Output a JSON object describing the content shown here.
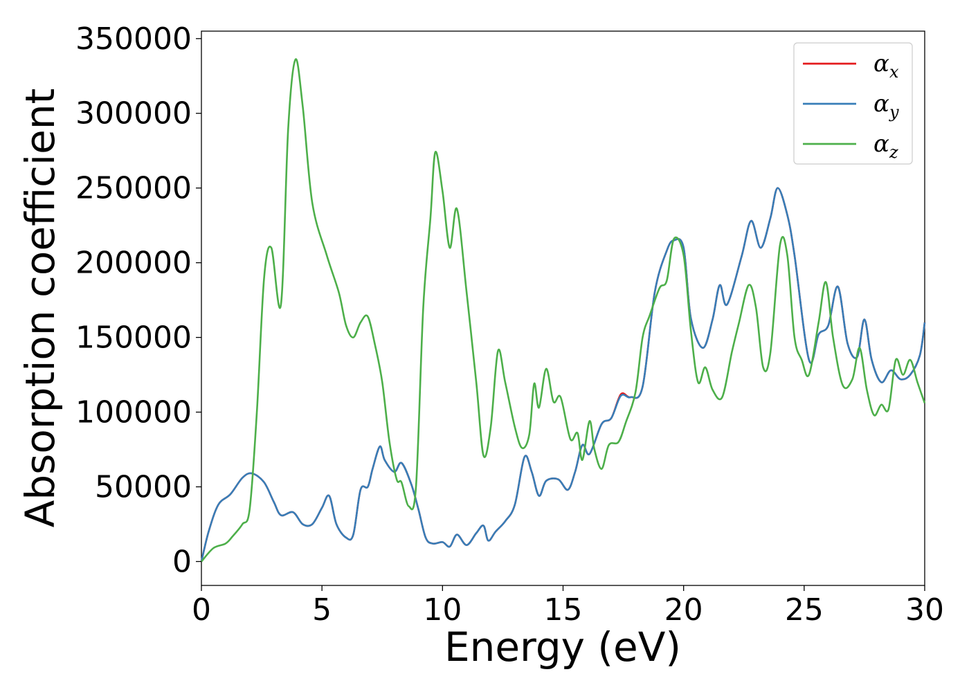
{
  "chart_data": {
    "type": "line",
    "xlabel": "Energy (eV)",
    "ylabel": "Absorption coefficient",
    "xlim": [
      0,
      30
    ],
    "ylim": [
      -16000,
      355000
    ],
    "xticks": [
      0,
      5,
      10,
      15,
      20,
      25,
      30
    ],
    "yticks": [
      0,
      50000,
      100000,
      150000,
      200000,
      250000,
      300000,
      350000
    ],
    "grid": false,
    "legend_position": "top-right",
    "series": [
      {
        "name": "α",
        "sub": "x",
        "color": "#e41a1c",
        "points": [
          [
            0,
            0
          ],
          [
            0.3,
            20000
          ],
          [
            0.7,
            38000
          ],
          [
            1.2,
            45000
          ],
          [
            1.7,
            56000
          ],
          [
            2.1,
            59000
          ],
          [
            2.6,
            53000
          ],
          [
            3.0,
            40000
          ],
          [
            3.3,
            31000
          ],
          [
            3.8,
            33000
          ],
          [
            4.2,
            25000
          ],
          [
            4.6,
            25000
          ],
          [
            5.0,
            36000
          ],
          [
            5.3,
            44000
          ],
          [
            5.6,
            25000
          ],
          [
            6.0,
            16000
          ],
          [
            6.3,
            18000
          ],
          [
            6.6,
            48000
          ],
          [
            6.9,
            50000
          ],
          [
            7.1,
            62000
          ],
          [
            7.4,
            77000
          ],
          [
            7.6,
            68000
          ],
          [
            8.0,
            60000
          ],
          [
            8.3,
            66000
          ],
          [
            8.7,
            52000
          ],
          [
            9.0,
            35000
          ],
          [
            9.3,
            16000
          ],
          [
            9.6,
            12000
          ],
          [
            10.0,
            13000
          ],
          [
            10.3,
            10000
          ],
          [
            10.6,
            18000
          ],
          [
            11.0,
            11000
          ],
          [
            11.4,
            19000
          ],
          [
            11.7,
            24000
          ],
          [
            11.9,
            14000
          ],
          [
            12.2,
            20000
          ],
          [
            12.6,
            27000
          ],
          [
            13.0,
            38000
          ],
          [
            13.4,
            70000
          ],
          [
            13.7,
            60000
          ],
          [
            14.0,
            44000
          ],
          [
            14.3,
            54000
          ],
          [
            14.8,
            55000
          ],
          [
            15.2,
            48000
          ],
          [
            15.5,
            60000
          ],
          [
            15.8,
            78000
          ],
          [
            16.1,
            72000
          ],
          [
            16.6,
            92000
          ],
          [
            17.0,
            96000
          ],
          [
            17.4,
            112000
          ],
          [
            17.8,
            110000
          ],
          [
            18.3,
            117000
          ],
          [
            18.8,
            180000
          ],
          [
            19.3,
            208000
          ],
          [
            19.6,
            215000
          ],
          [
            20.0,
            210000
          ],
          [
            20.3,
            163000
          ],
          [
            20.8,
            143000
          ],
          [
            21.2,
            162000
          ],
          [
            21.5,
            185000
          ],
          [
            21.8,
            172000
          ],
          [
            22.4,
            204000
          ],
          [
            22.8,
            228000
          ],
          [
            23.2,
            210000
          ],
          [
            23.6,
            230000
          ],
          [
            23.9,
            250000
          ],
          [
            24.3,
            232000
          ],
          [
            24.6,
            205000
          ],
          [
            25.2,
            135000
          ],
          [
            25.6,
            152000
          ],
          [
            26.0,
            158000
          ],
          [
            26.4,
            184000
          ],
          [
            26.8,
            146000
          ],
          [
            27.2,
            137000
          ],
          [
            27.5,
            162000
          ],
          [
            27.8,
            135000
          ],
          [
            28.2,
            120000
          ],
          [
            28.6,
            128000
          ],
          [
            29.0,
            122000
          ],
          [
            29.4,
            125000
          ],
          [
            29.8,
            138000
          ],
          [
            30.0,
            160000
          ]
        ]
      },
      {
        "name": "α",
        "sub": "y",
        "color": "#377eb8",
        "points": [
          [
            0,
            0
          ],
          [
            0.3,
            20000
          ],
          [
            0.7,
            38000
          ],
          [
            1.2,
            45000
          ],
          [
            1.7,
            56000
          ],
          [
            2.1,
            59000
          ],
          [
            2.6,
            53000
          ],
          [
            3.0,
            40000
          ],
          [
            3.3,
            31000
          ],
          [
            3.8,
            33000
          ],
          [
            4.2,
            25000
          ],
          [
            4.6,
            25000
          ],
          [
            5.0,
            36000
          ],
          [
            5.3,
            44000
          ],
          [
            5.6,
            25000
          ],
          [
            6.0,
            16000
          ],
          [
            6.3,
            18000
          ],
          [
            6.6,
            48000
          ],
          [
            6.9,
            50000
          ],
          [
            7.1,
            62000
          ],
          [
            7.4,
            77000
          ],
          [
            7.6,
            68000
          ],
          [
            8.0,
            60000
          ],
          [
            8.3,
            66000
          ],
          [
            8.7,
            52000
          ],
          [
            9.0,
            35000
          ],
          [
            9.3,
            16000
          ],
          [
            9.6,
            12000
          ],
          [
            10.0,
            13000
          ],
          [
            10.3,
            10000
          ],
          [
            10.6,
            18000
          ],
          [
            11.0,
            11000
          ],
          [
            11.4,
            19000
          ],
          [
            11.7,
            24000
          ],
          [
            11.9,
            14000
          ],
          [
            12.2,
            20000
          ],
          [
            12.6,
            27000
          ],
          [
            13.0,
            38000
          ],
          [
            13.4,
            70000
          ],
          [
            13.7,
            60000
          ],
          [
            14.0,
            44000
          ],
          [
            14.3,
            54000
          ],
          [
            14.8,
            55000
          ],
          [
            15.2,
            48000
          ],
          [
            15.5,
            60000
          ],
          [
            15.8,
            78000
          ],
          [
            16.1,
            72000
          ],
          [
            16.6,
            92000
          ],
          [
            17.0,
            96000
          ],
          [
            17.4,
            111000
          ],
          [
            17.8,
            110000
          ],
          [
            18.3,
            117000
          ],
          [
            18.8,
            180000
          ],
          [
            19.3,
            208000
          ],
          [
            19.6,
            215000
          ],
          [
            20.0,
            210000
          ],
          [
            20.3,
            163000
          ],
          [
            20.8,
            143000
          ],
          [
            21.2,
            162000
          ],
          [
            21.5,
            185000
          ],
          [
            21.8,
            172000
          ],
          [
            22.4,
            204000
          ],
          [
            22.8,
            228000
          ],
          [
            23.2,
            210000
          ],
          [
            23.6,
            230000
          ],
          [
            23.9,
            250000
          ],
          [
            24.3,
            232000
          ],
          [
            24.6,
            205000
          ],
          [
            25.2,
            135000
          ],
          [
            25.6,
            152000
          ],
          [
            26.0,
            158000
          ],
          [
            26.4,
            184000
          ],
          [
            26.8,
            146000
          ],
          [
            27.2,
            137000
          ],
          [
            27.5,
            162000
          ],
          [
            27.8,
            135000
          ],
          [
            28.2,
            120000
          ],
          [
            28.6,
            128000
          ],
          [
            29.0,
            122000
          ],
          [
            29.4,
            125000
          ],
          [
            29.8,
            138000
          ],
          [
            30.0,
            160000
          ]
        ]
      },
      {
        "name": "α",
        "sub": "z",
        "color": "#4daf4a",
        "points": [
          [
            0,
            0
          ],
          [
            0.5,
            9000
          ],
          [
            1.0,
            12000
          ],
          [
            1.3,
            17000
          ],
          [
            1.7,
            25000
          ],
          [
            2.0,
            35000
          ],
          [
            2.3,
            100000
          ],
          [
            2.6,
            190000
          ],
          [
            2.9,
            210000
          ],
          [
            3.3,
            172000
          ],
          [
            3.6,
            290000
          ],
          [
            3.9,
            336000
          ],
          [
            4.2,
            305000
          ],
          [
            4.6,
            240000
          ],
          [
            5.2,
            205000
          ],
          [
            5.7,
            180000
          ],
          [
            6.0,
            158000
          ],
          [
            6.3,
            150000
          ],
          [
            6.6,
            160000
          ],
          [
            6.9,
            164000
          ],
          [
            7.2,
            145000
          ],
          [
            7.5,
            120000
          ],
          [
            7.8,
            80000
          ],
          [
            8.1,
            55000
          ],
          [
            8.3,
            53000
          ],
          [
            8.6,
            37000
          ],
          [
            8.9,
            50000
          ],
          [
            9.2,
            170000
          ],
          [
            9.5,
            230000
          ],
          [
            9.7,
            274000
          ],
          [
            10.0,
            248000
          ],
          [
            10.3,
            210000
          ],
          [
            10.6,
            236000
          ],
          [
            11.0,
            180000
          ],
          [
            11.4,
            120000
          ],
          [
            11.7,
            71000
          ],
          [
            12.0,
            90000
          ],
          [
            12.3,
            141000
          ],
          [
            12.6,
            120000
          ],
          [
            13.0,
            90000
          ],
          [
            13.3,
            76000
          ],
          [
            13.6,
            85000
          ],
          [
            13.8,
            119000
          ],
          [
            14.0,
            103000
          ],
          [
            14.3,
            129000
          ],
          [
            14.6,
            107000
          ],
          [
            14.9,
            110000
          ],
          [
            15.3,
            82000
          ],
          [
            15.6,
            86000
          ],
          [
            15.8,
            68000
          ],
          [
            16.1,
            94000
          ],
          [
            16.3,
            75000
          ],
          [
            16.6,
            62000
          ],
          [
            16.9,
            78000
          ],
          [
            17.3,
            80000
          ],
          [
            17.6,
            93000
          ],
          [
            18.0,
            113000
          ],
          [
            18.3,
            150000
          ],
          [
            18.6,
            165000
          ],
          [
            19.0,
            183000
          ],
          [
            19.3,
            188000
          ],
          [
            19.6,
            216000
          ],
          [
            20.0,
            205000
          ],
          [
            20.3,
            155000
          ],
          [
            20.6,
            120000
          ],
          [
            20.9,
            130000
          ],
          [
            21.2,
            115000
          ],
          [
            21.6,
            110000
          ],
          [
            22.0,
            140000
          ],
          [
            22.3,
            160000
          ],
          [
            22.7,
            185000
          ],
          [
            23.0,
            170000
          ],
          [
            23.3,
            130000
          ],
          [
            23.6,
            140000
          ],
          [
            24.0,
            212000
          ],
          [
            24.3,
            205000
          ],
          [
            24.6,
            150000
          ],
          [
            24.9,
            135000
          ],
          [
            25.2,
            125000
          ],
          [
            25.6,
            160000
          ],
          [
            25.9,
            187000
          ],
          [
            26.2,
            150000
          ],
          [
            26.6,
            118000
          ],
          [
            27.0,
            122000
          ],
          [
            27.3,
            143000
          ],
          [
            27.6,
            115000
          ],
          [
            27.9,
            98000
          ],
          [
            28.2,
            105000
          ],
          [
            28.5,
            102000
          ],
          [
            28.8,
            135000
          ],
          [
            29.1,
            125000
          ],
          [
            29.4,
            135000
          ],
          [
            29.7,
            120000
          ],
          [
            30.0,
            106000
          ]
        ]
      }
    ]
  }
}
